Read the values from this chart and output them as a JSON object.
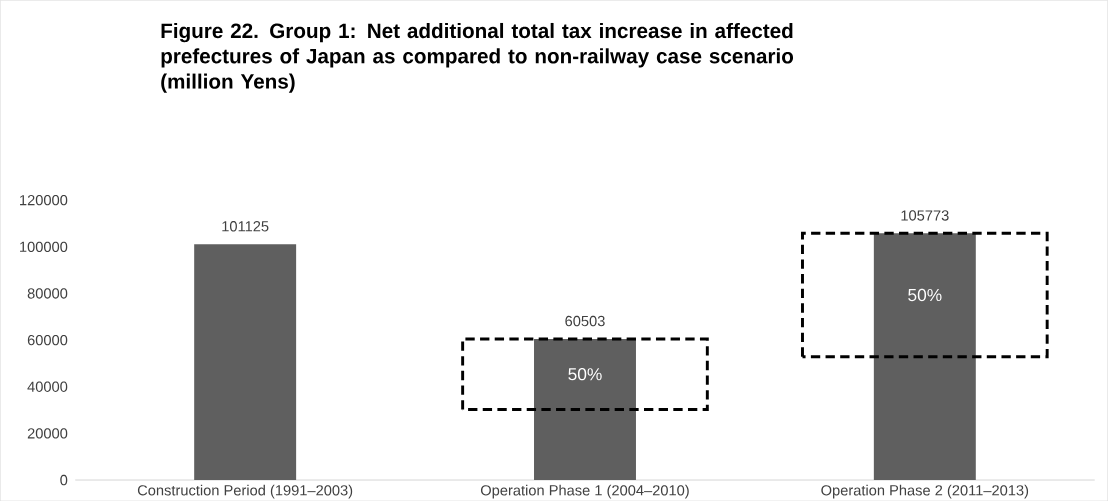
{
  "chart_data": {
    "type": "bar",
    "title": "Figure 22. Group 1: Net additional total tax increase in affected prefectures of Japan as compared to non-railway case scenario (million Yens)",
    "categories": [
      "Construction Period (1991–2003)",
      "Operation Phase 1 (2004–2010)",
      "Operation Phase 2 (2011–2013)"
    ],
    "values": [
      101125,
      60503,
      105773
    ],
    "color": "#5f5f5f",
    "data_labels": true,
    "ylim": [
      0,
      120000
    ],
    "yticks": [
      0,
      20000,
      40000,
      60000,
      80000,
      100000,
      120000
    ],
    "annotations": [
      "50%",
      "50%"
    ]
  }
}
